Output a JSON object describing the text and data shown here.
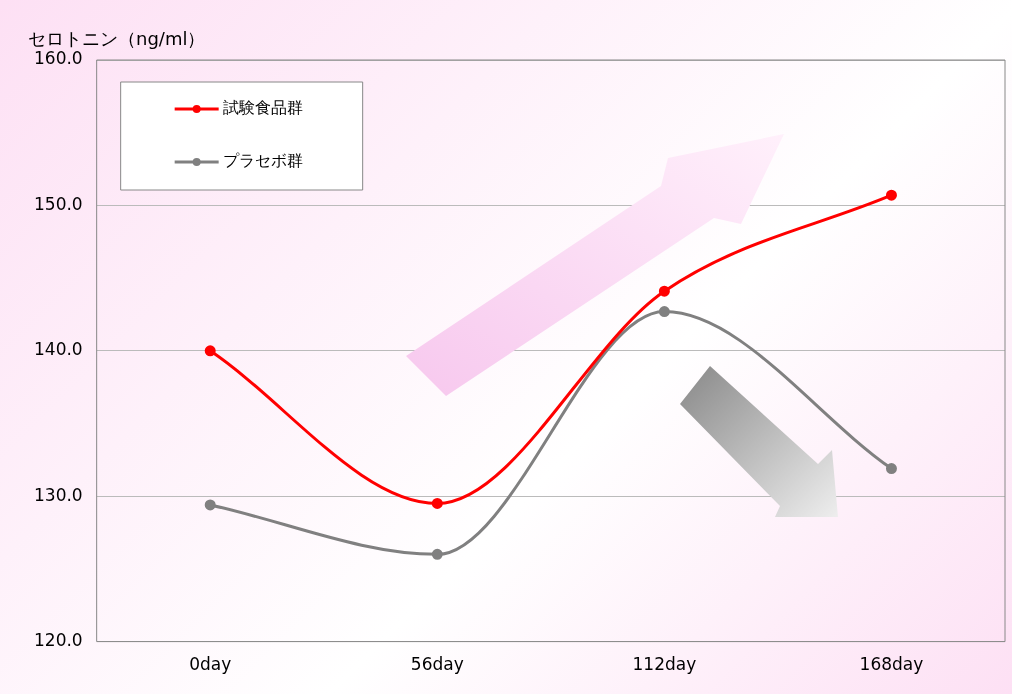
{
  "chart_data": {
    "type": "line",
    "ylabel": "セロトニン（ng/ml）",
    "categories": [
      "0day",
      "56day",
      "112day",
      "168day"
    ],
    "series": [
      {
        "name": "試験食品群",
        "color": "#ff0000",
        "values": [
          140.0,
          129.5,
          144.1,
          150.7
        ]
      },
      {
        "name": "プラセボ群",
        "color": "#808080",
        "values": [
          129.4,
          126.0,
          142.7,
          131.9
        ]
      }
    ],
    "ylim": [
      120,
      160
    ],
    "yticks": [
      {
        "value": 120,
        "label": "120.0"
      },
      {
        "value": 130,
        "label": "130.0"
      },
      {
        "value": 140,
        "label": "140.0"
      },
      {
        "value": 150,
        "label": "150.0"
      },
      {
        "value": 160,
        "label": "160.0"
      }
    ],
    "grid": "y",
    "legend": "top left",
    "marker": "circle",
    "line_style": "solid"
  }
}
